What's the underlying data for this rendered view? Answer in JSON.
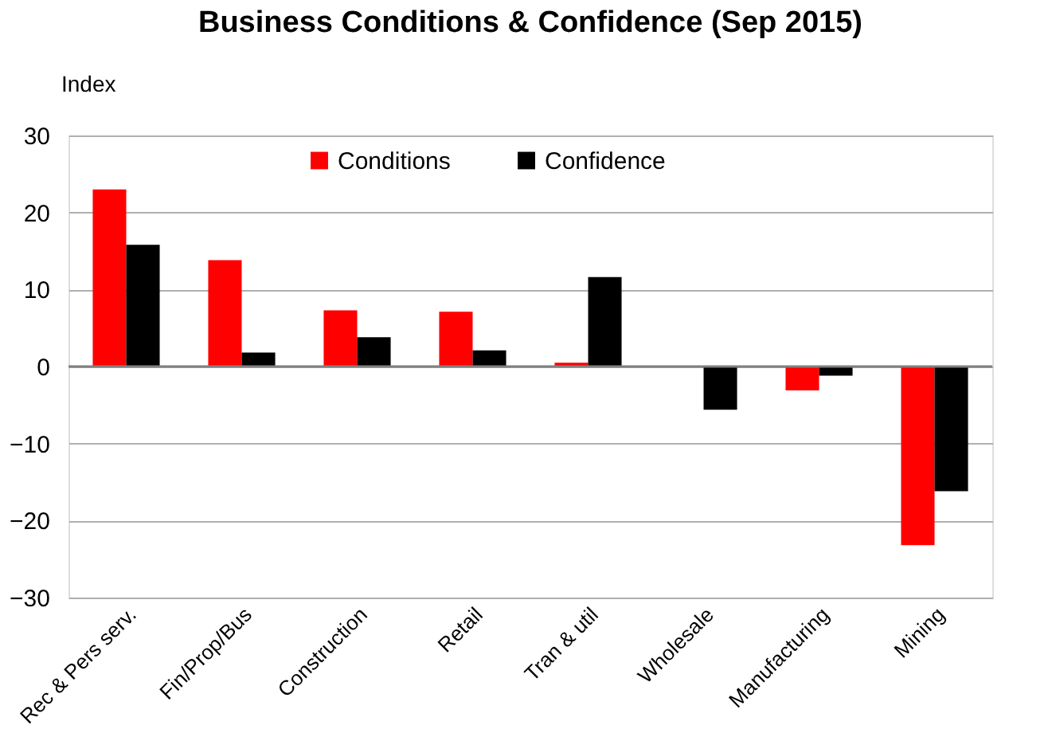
{
  "chart_data": {
    "type": "bar",
    "title": "Business Conditions & Confidence (Sep 2015)",
    "ylabel": "Index",
    "categories": [
      "Rec & Pers serv.",
      "Fin/Prop/Bus",
      "Construction",
      "Retail",
      "Tran & util",
      "Wholesale",
      "Manufacturing",
      "Mining"
    ],
    "series": [
      {
        "name": "Conditions",
        "color": "#ff0000",
        "values": [
          23.0,
          13.8,
          7.3,
          7.1,
          0.5,
          0,
          -3.1,
          -23.2
        ]
      },
      {
        "name": "Confidence",
        "color": "#000000",
        "values": [
          15.8,
          1.8,
          3.8,
          2.1,
          11.6,
          -5.6,
          -1.2,
          -16.2
        ]
      }
    ],
    "ylim": [
      -30,
      30
    ],
    "yticks": [
      -30,
      -20,
      -10,
      0,
      10,
      20,
      30
    ],
    "grid": "y",
    "legend": "top"
  }
}
